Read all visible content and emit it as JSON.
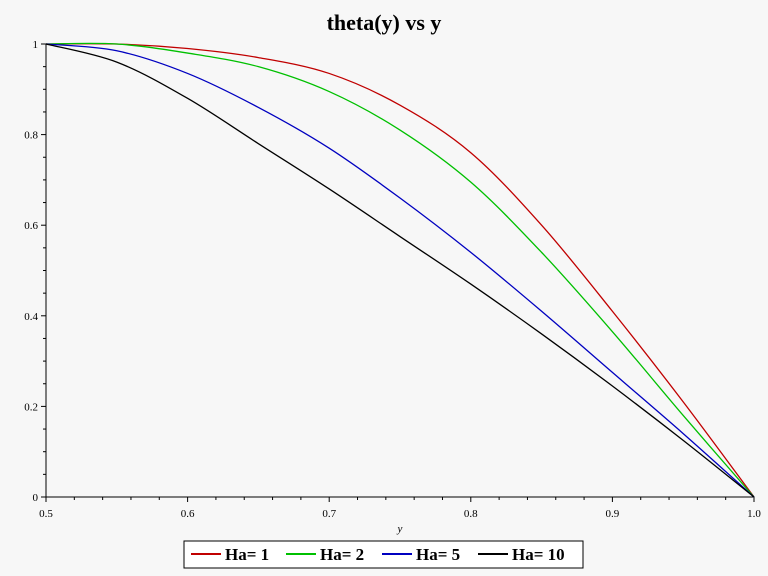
{
  "chart_data": {
    "type": "line",
    "title": "theta(y) vs y",
    "xlabel": "y",
    "ylabel": "",
    "xlim": [
      0.5,
      1.0
    ],
    "ylim": [
      0,
      1
    ],
    "xticks": [
      "0.5",
      "0.6",
      "0.7",
      "0.8",
      "0.9",
      "1.0"
    ],
    "yticks": [
      "0",
      "0.2",
      "0.4",
      "0.6",
      "0.8",
      "1"
    ],
    "grid": false,
    "legend_position": "bottom",
    "x": [
      0.5,
      0.55,
      0.6,
      0.65,
      0.7,
      0.75,
      0.8,
      0.85,
      0.9,
      0.95,
      1.0
    ],
    "series": [
      {
        "name": "Ha= 1",
        "color": "#c00000",
        "values": [
          1.0,
          1.0,
          0.99,
          0.97,
          0.935,
          0.865,
          0.76,
          0.6,
          0.41,
          0.21,
          0.0
        ]
      },
      {
        "name": "Ha= 2",
        "color": "#00c000",
        "values": [
          1.0,
          1.0,
          0.98,
          0.95,
          0.895,
          0.81,
          0.695,
          0.54,
          0.365,
          0.18,
          0.0
        ]
      },
      {
        "name": "Ha= 5",
        "color": "#0000c0",
        "values": [
          1.0,
          0.985,
          0.935,
          0.86,
          0.77,
          0.66,
          0.54,
          0.41,
          0.275,
          0.14,
          0.0
        ]
      },
      {
        "name": "Ha= 10",
        "color": "#000000",
        "values": [
          1.0,
          0.96,
          0.88,
          0.78,
          0.68,
          0.575,
          0.47,
          0.36,
          0.245,
          0.125,
          0.0
        ]
      }
    ]
  }
}
